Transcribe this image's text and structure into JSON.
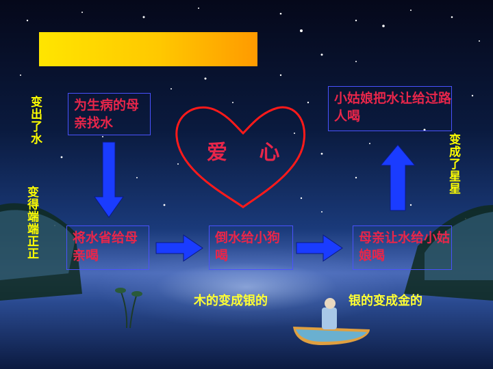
{
  "boxes": {
    "sick_mother": "为生病的母亲找水",
    "save_water": "将水省给母亲喝",
    "dog_water": "倒水给小狗喝",
    "mother_girl": "母亲让水给小姑娘喝",
    "girl_passerby": "小姑娘把水让给过路人喝"
  },
  "side_labels": {
    "became_water": "变出了水",
    "became_full": "变得端端正正",
    "became_stars": "变成了星星"
  },
  "heart_label": "爱 心",
  "captions": {
    "wood_to_silver": "木的变成银的",
    "silver_to_gold": "银的变成金的"
  },
  "colors": {
    "box_text": "#e8264a",
    "box_border": "#4a52ff",
    "arrow_fill": "#1a3cff",
    "side_text": "#ffff00",
    "heart_stroke": "#ff1a1a"
  }
}
